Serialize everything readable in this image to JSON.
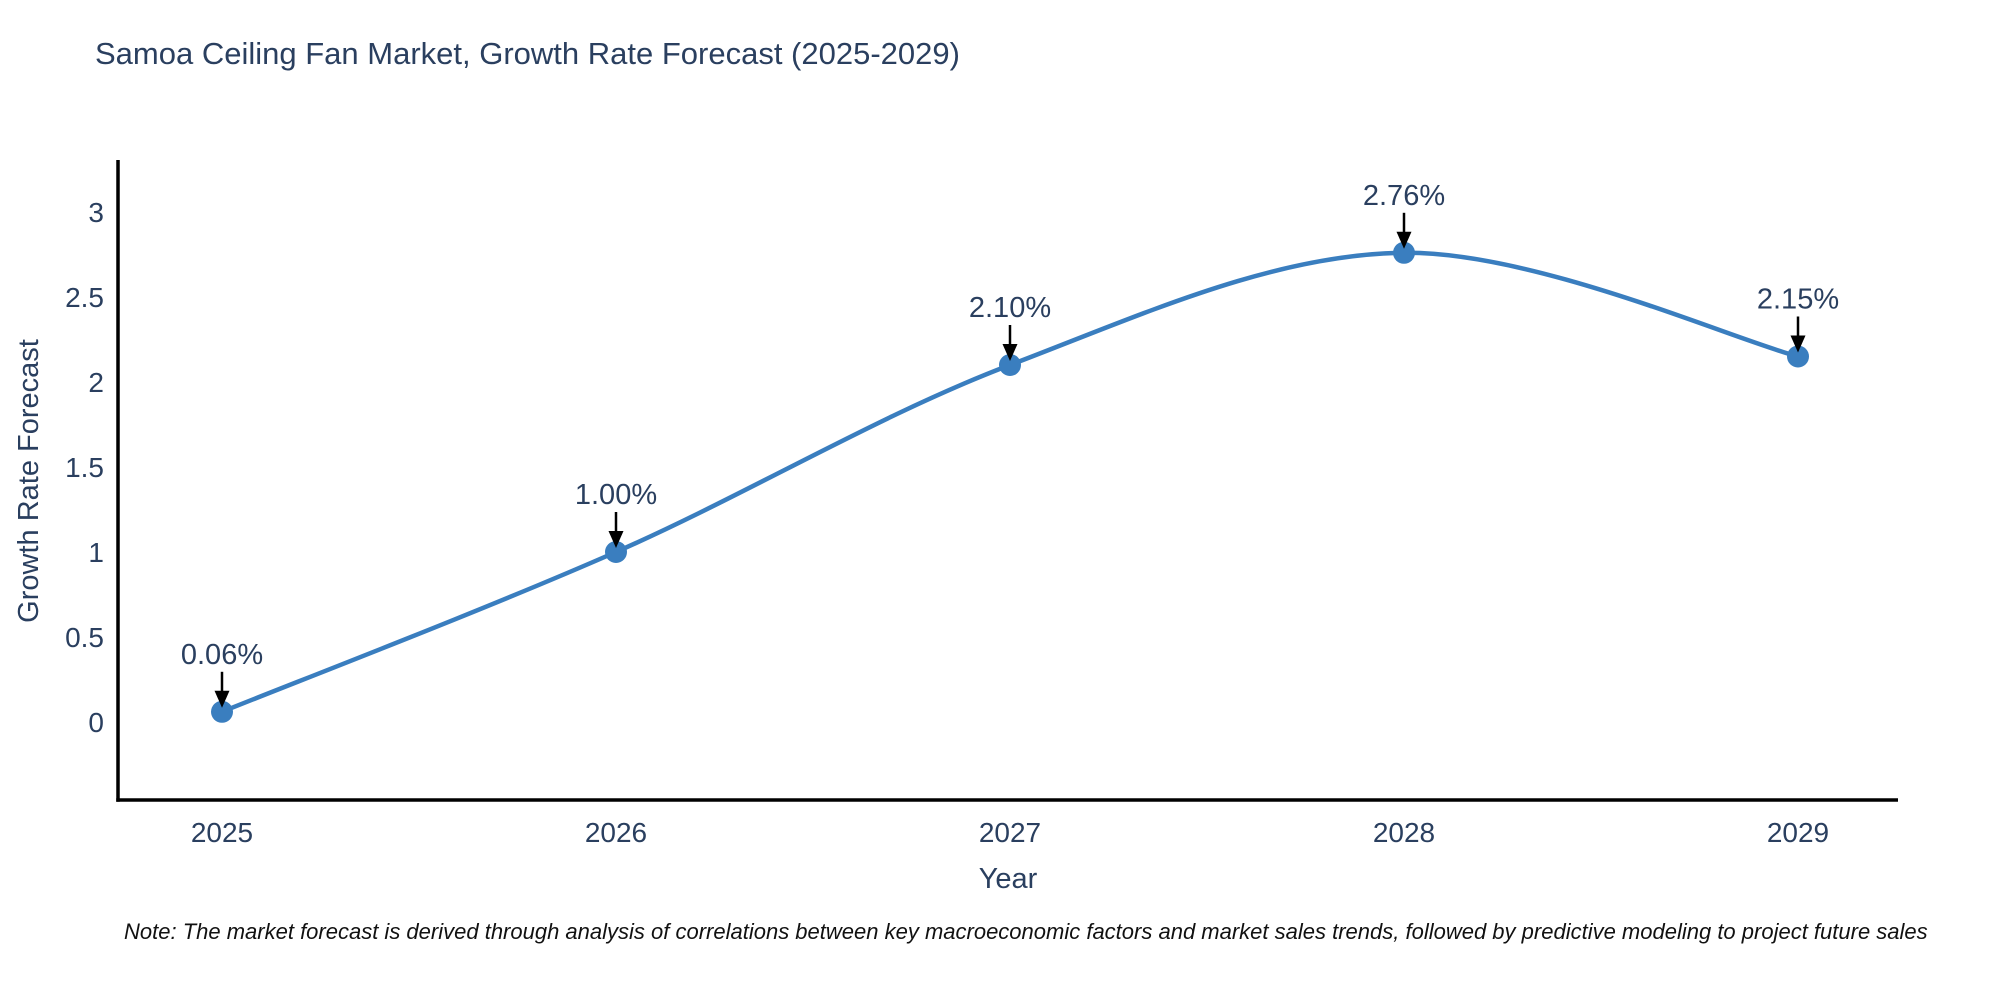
{
  "chart_data": {
    "type": "line",
    "line_shape": "spline",
    "title": "Samoa Ceiling Fan Market, Growth Rate Forecast (2025-2029)",
    "xlabel": "Year",
    "ylabel": "Growth Rate Forecast",
    "categories": [
      "2025",
      "2026",
      "2027",
      "2028",
      "2029"
    ],
    "values": [
      0.06,
      1.0,
      2.1,
      2.76,
      2.15
    ],
    "point_labels": [
      "0.06%",
      "1.00%",
      "2.10%",
      "2.76%",
      "2.15%"
    ],
    "yticks": [
      "0",
      "0.5",
      "1",
      "1.5",
      "2",
      "2.5",
      "3"
    ],
    "ytick_values": [
      0,
      0.5,
      1,
      1.5,
      2,
      2.5,
      3
    ],
    "ylim": [
      -0.46,
      3.31
    ],
    "grid": false,
    "legend": false,
    "line_color": "#3a7ebf",
    "marker_color": "#3a7ebf",
    "axis_color": "#000000",
    "text_color": "#2a3f5f",
    "arrow_color": "#000000",
    "note": "Note: The market forecast is derived through analysis of correlations between key macroeconomic factors and market sales trends, followed by predictive modeling to project future sales"
  }
}
